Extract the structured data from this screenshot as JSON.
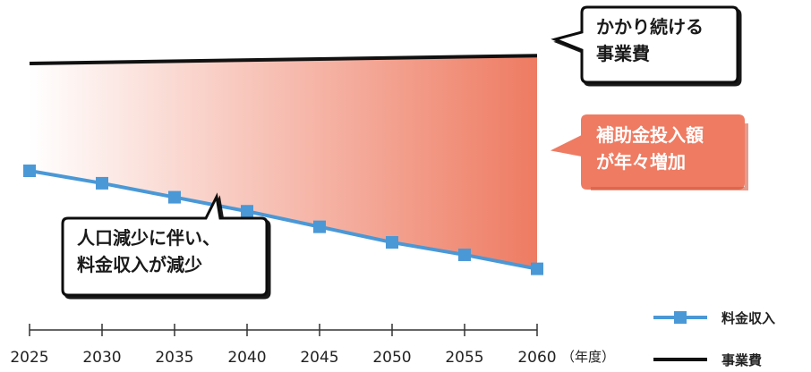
{
  "chart_data": {
    "type": "line",
    "x": [
      2025,
      2030,
      2035,
      2040,
      2045,
      2050,
      2055,
      2060
    ],
    "xlabel": "（年度）",
    "series": [
      {
        "name": "料金収入",
        "values": [
          100,
          92,
          83,
          74,
          64,
          54,
          46,
          37
        ],
        "color": "#4a98d6",
        "marker": "square"
      },
      {
        "name": "事業費",
        "start": 169,
        "end": 174,
        "color": "#111111"
      }
    ],
    "filled_area": {
      "between": [
        "料金収入",
        "事業費"
      ],
      "color_from": "#ffffff",
      "color_to": "#ee7b62"
    },
    "grid": false,
    "legend_position": "bottom-right",
    "annotations": [
      {
        "id": "cost",
        "lines": [
          "かかり続ける",
          "事業費"
        ]
      },
      {
        "id": "subsidy",
        "lines": [
          "補助金投入額",
          "が年々増加"
        ],
        "color": "#ee7b62"
      },
      {
        "id": "revenue",
        "lines": [
          "人口減少に伴い、",
          "料金収入が減少"
        ]
      }
    ]
  }
}
